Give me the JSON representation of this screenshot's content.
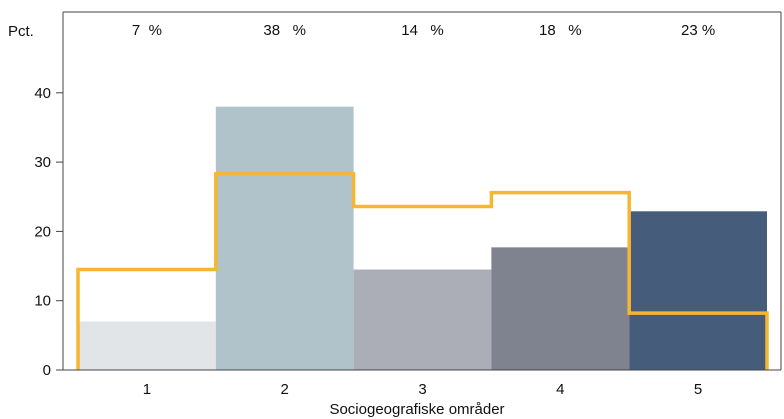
{
  "chart_data": {
    "type": "bar",
    "title": "",
    "xlabel": "Sociogeografiske områder",
    "ylabel": "Pct.",
    "categories": [
      "1",
      "2",
      "3",
      "4",
      "5"
    ],
    "series": [
      {
        "type": "bar",
        "values": [
          7,
          38,
          14.5,
          17.7,
          22.9
        ],
        "colors": [
          "#e2e5e8",
          "#b0c2ca",
          "#acaeb7",
          "#7e838f",
          "#455d7b"
        ]
      },
      {
        "type": "step",
        "values": [
          14.5,
          28.3,
          23.6,
          25.6,
          8.2
        ],
        "color": "#f5b731"
      }
    ],
    "top_labels": [
      "7  %",
      "38   %",
      "14   %",
      "18   %",
      "23 %"
    ],
    "ylim": [
      0,
      51
    ],
    "yticks": [
      "0",
      "10",
      "20",
      "30",
      "40"
    ],
    "grid": false,
    "legend": "none"
  }
}
